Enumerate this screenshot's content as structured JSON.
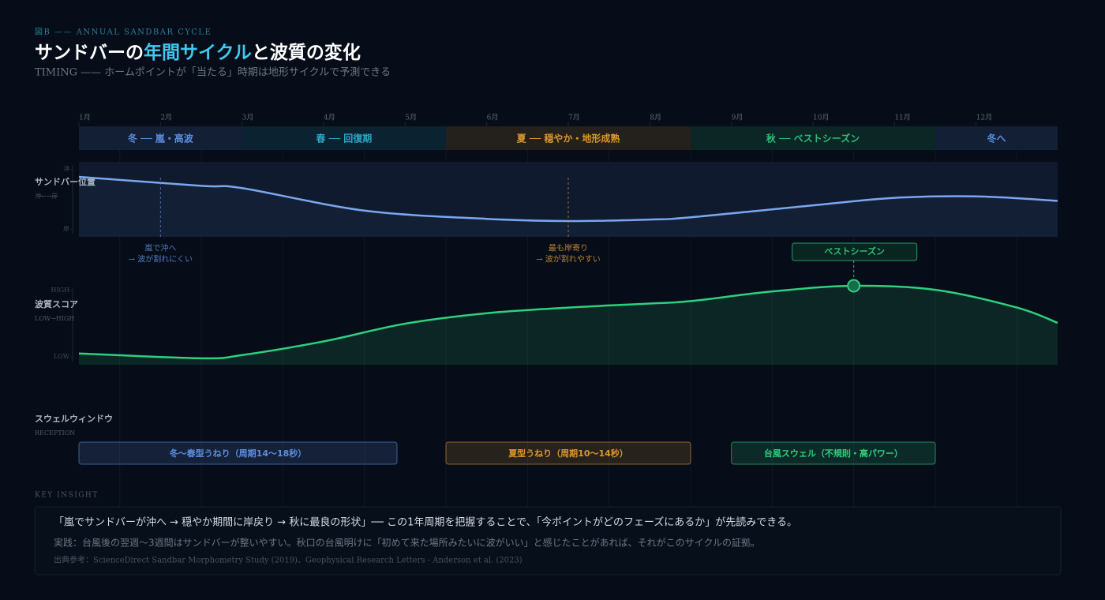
{
  "header": {
    "eyebrow": "図B —— ANNUAL SANDBAR CYCLE",
    "title_a": "サンドバーの",
    "title_b": "年間サイクル",
    "title_c": "と波質の変化",
    "subtitle": "TIMING —— ホームポイントが「当たる」時期は地形サイクルで予測できる"
  },
  "timeline": {
    "xlim": [
      1,
      13
    ],
    "xticks": [
      {
        "value": 1,
        "label": "1月"
      },
      {
        "value": 2,
        "label": "2月"
      },
      {
        "value": 3,
        "label": "3月"
      },
      {
        "value": 4,
        "label": "4月"
      },
      {
        "value": 5,
        "label": "5月"
      },
      {
        "value": 6,
        "label": "6月"
      },
      {
        "value": 7,
        "label": "7月"
      },
      {
        "value": 8,
        "label": "8月"
      },
      {
        "value": 9,
        "label": "9月"
      },
      {
        "value": 10,
        "label": "10月"
      },
      {
        "value": 11,
        "label": "11月"
      },
      {
        "value": 12,
        "label": "12月"
      }
    ],
    "phases": [
      {
        "label": "冬 ── 嵐・高波",
        "start": 1,
        "end": 3,
        "color": "#5b8fe0"
      },
      {
        "label": "春 ── 回復期",
        "start": 3,
        "end": 5.5,
        "color": "#2aa6c9"
      },
      {
        "label": "夏 ── 穏やか・地形成熟",
        "start": 5.5,
        "end": 8.5,
        "color": "#d9962f"
      },
      {
        "label": "秋 ── ベストシーズン",
        "start": 8.5,
        "end": 11.5,
        "color": "#2dbd78"
      },
      {
        "label": "冬へ",
        "start": 11.5,
        "end": 13,
        "color": "#5b8fe0"
      }
    ]
  },
  "chart_data": [
    {
      "type": "line",
      "title": "サンドバー位置",
      "subtitle": "沖←→岸",
      "color": "#7aa7f0",
      "x": [
        1,
        2.5,
        3,
        4.5,
        6,
        7,
        8,
        8.5,
        10,
        11,
        12,
        13
      ],
      "values": [
        80,
        68,
        65,
        35,
        24,
        21,
        23,
        26,
        42,
        52,
        54,
        48
      ],
      "xlim": [
        1,
        13
      ],
      "ylim": [
        0,
        100
      ],
      "yticks": [
        {
          "value": 90,
          "label": "沖"
        },
        {
          "value": 10,
          "label": "岸"
        }
      ],
      "annotations": [
        {
          "x": 2,
          "lines": [
            "嵐で沖へ",
            "→ 波が割れにくい"
          ],
          "color": "#5b8fe0"
        },
        {
          "x": 7,
          "lines": [
            "最も岸寄り",
            "→ 波が割れやすい"
          ],
          "color": "#d9962f"
        }
      ]
    },
    {
      "type": "line",
      "title": "波質スコア",
      "subtitle": "LOW→HIGH",
      "color": "#2dd07e",
      "x": [
        1,
        2.5,
        3,
        4,
        5,
        6,
        7,
        8,
        8.5,
        9.5,
        10.5,
        11.5,
        12.5,
        13
      ],
      "values": [
        14,
        8,
        12,
        29,
        51,
        64,
        71,
        76,
        79,
        91,
        98,
        93,
        71,
        52
      ],
      "xlim": [
        1,
        13
      ],
      "ylim": [
        0,
        100
      ],
      "yticks": [
        {
          "value": 92,
          "label": "HIGH"
        },
        {
          "value": 10,
          "label": "LOW"
        }
      ],
      "annotations": [
        {
          "x": 10.5,
          "text": "ベストシーズン",
          "color": "#2dbd78"
        }
      ]
    }
  ],
  "swell_window": {
    "title": "スウェルウィンドウ",
    "subtitle": "RECEPTION",
    "bands": [
      {
        "label": "冬〜春型うねり（周期14〜18秒）",
        "start": 1,
        "end": 4.9,
        "color": "#5b8fe0"
      },
      {
        "label": "夏型うねり（周期10〜14秒）",
        "start": 5.5,
        "end": 8.5,
        "color": "#d9962f"
      },
      {
        "label": "台風スウェル（不規則・高パワー）",
        "start": 9,
        "end": 11.5,
        "color": "#2dd07e"
      }
    ]
  },
  "insight": {
    "label": "KEY INSIGHT",
    "main": "「嵐でサンドバーが沖へ → 穏やか期間に岸戻り → 秋に最良の形状」── この1年周期を把握することで、「今ポイントがどのフェーズにあるか」が先読みできる。",
    "practice": "実践：台風後の翌週〜3週間はサンドバーが整いやすい。秋口の台風明けに「初めて来た場所みたいに波がいい」と感じたことがあれば、それがこのサイクルの証拠。",
    "source": "出典参考：ScienceDirect Sandbar Morphometry Study (2019)、Geophysical Research Letters - Anderson et al. (2023)"
  }
}
